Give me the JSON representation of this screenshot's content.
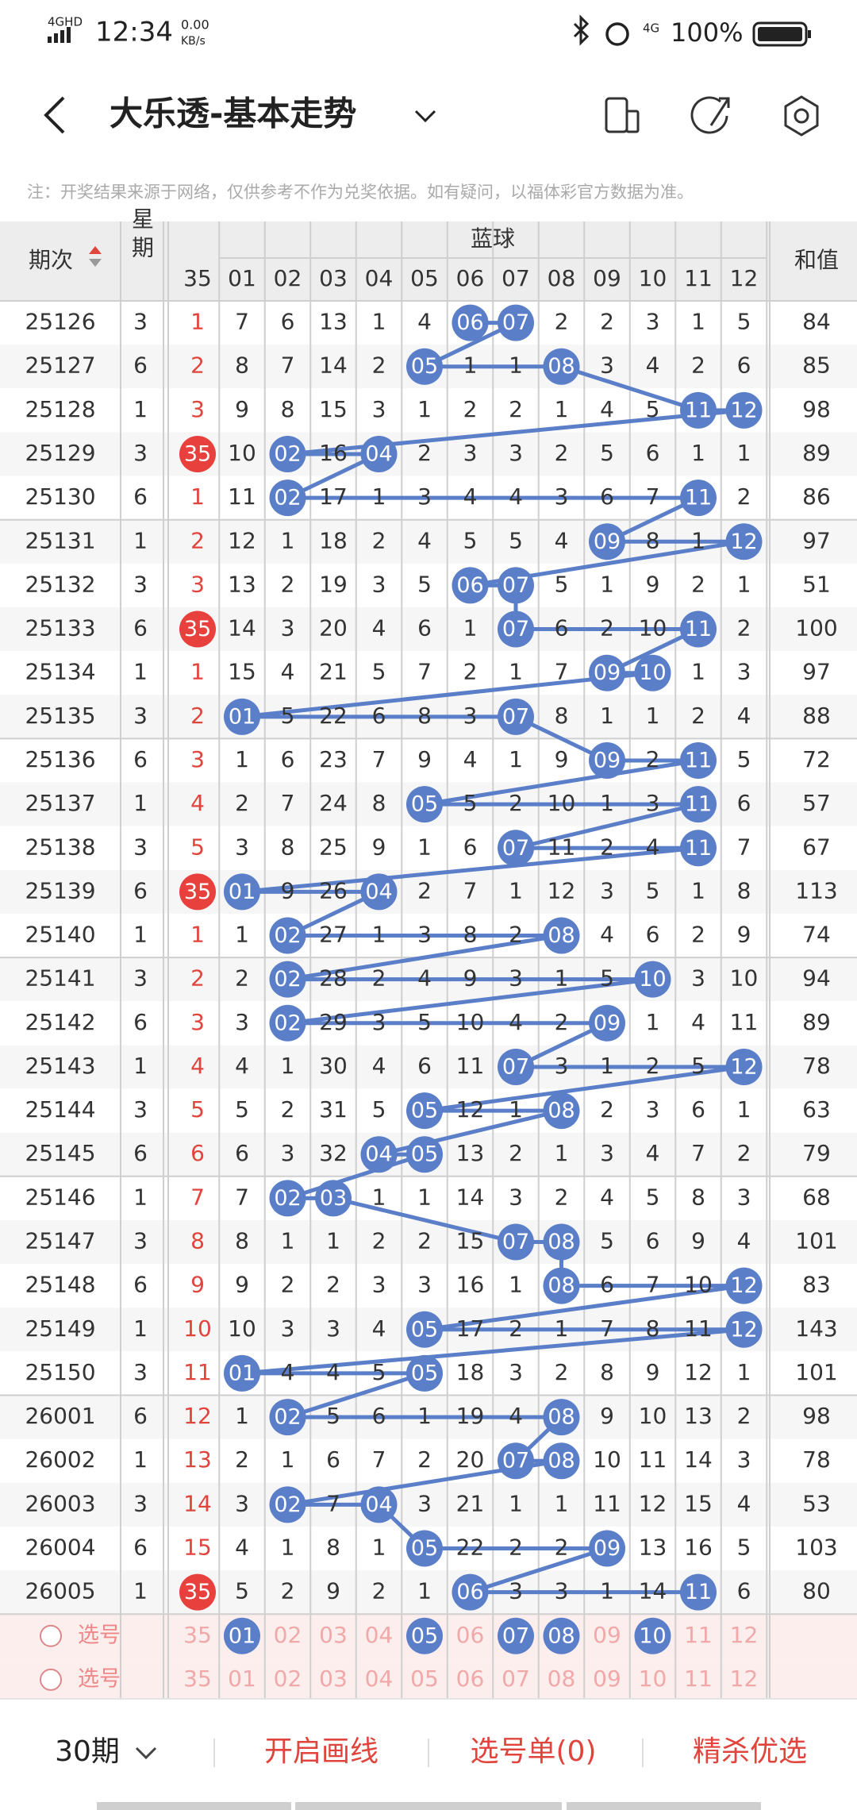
{
  "status_bar": {
    "network_type": "4GHD",
    "time": "12:34",
    "net_speed": "0.00",
    "net_unit": "KB/s",
    "mobile": "4G",
    "battery": "100%"
  },
  "header": {
    "title": "大乐透-基本走势"
  },
  "notice": "注：开奖结果来源于网络，仅供参考不作为兑奖依据。如有疑问，以福体彩官方数据为准。",
  "table": {
    "columns": {
      "period": "期次",
      "weekday": "星期",
      "blue_group": "蓝球",
      "front": "35",
      "blue": [
        "01",
        "02",
        "03",
        "04",
        "05",
        "06",
        "07",
        "08",
        "09",
        "10",
        "11",
        "12"
      ],
      "sum": "和值"
    },
    "rows": [
      {
        "period": "25126",
        "weekday": "3",
        "front": "1",
        "blue": [
          "7",
          "6",
          "13",
          "1",
          "4",
          "06",
          "07",
          "2",
          "2",
          "3",
          "1",
          "5"
        ],
        "balls": [
          5,
          6
        ],
        "sum": "84"
      },
      {
        "period": "25127",
        "weekday": "6",
        "front": "2",
        "blue": [
          "8",
          "7",
          "14",
          "2",
          "05",
          "1",
          "1",
          "08",
          "3",
          "4",
          "2",
          "6"
        ],
        "balls": [
          4,
          7
        ],
        "sum": "85"
      },
      {
        "period": "25128",
        "weekday": "1",
        "front": "3",
        "blue": [
          "9",
          "8",
          "15",
          "3",
          "1",
          "2",
          "2",
          "1",
          "4",
          "5",
          "11",
          "12"
        ],
        "balls": [
          10,
          11
        ],
        "sum": "98"
      },
      {
        "period": "25129",
        "weekday": "3",
        "front": "35",
        "blue": [
          "10",
          "02",
          "16",
          "04",
          "2",
          "3",
          "3",
          "2",
          "5",
          "6",
          "1",
          "1"
        ],
        "balls": [
          1,
          3
        ],
        "sum": "89"
      },
      {
        "period": "25130",
        "weekday": "6",
        "front": "1",
        "blue": [
          "11",
          "02",
          "17",
          "1",
          "3",
          "4",
          "4",
          "3",
          "6",
          "7",
          "11",
          "2"
        ],
        "balls": [
          1,
          10
        ],
        "sum": "86"
      },
      {
        "period": "25131",
        "weekday": "1",
        "front": "2",
        "blue": [
          "12",
          "1",
          "18",
          "2",
          "4",
          "5",
          "5",
          "4",
          "09",
          "8",
          "1",
          "12"
        ],
        "balls": [
          8,
          11
        ],
        "sum": "97"
      },
      {
        "period": "25132",
        "weekday": "3",
        "front": "3",
        "blue": [
          "13",
          "2",
          "19",
          "3",
          "5",
          "06",
          "07",
          "5",
          "1",
          "9",
          "2",
          "1"
        ],
        "balls": [
          5,
          6
        ],
        "sum": "51"
      },
      {
        "period": "25133",
        "weekday": "6",
        "front": "35",
        "blue": [
          "14",
          "3",
          "20",
          "4",
          "6",
          "1",
          "07",
          "6",
          "2",
          "10",
          "11",
          "2"
        ],
        "balls": [
          6,
          10
        ],
        "sum": "100"
      },
      {
        "period": "25134",
        "weekday": "1",
        "front": "1",
        "blue": [
          "15",
          "4",
          "21",
          "5",
          "7",
          "2",
          "1",
          "7",
          "09",
          "10",
          "1",
          "3"
        ],
        "balls": [
          8,
          9
        ],
        "sum": "97"
      },
      {
        "period": "25135",
        "weekday": "3",
        "front": "2",
        "blue": [
          "01",
          "5",
          "22",
          "6",
          "8",
          "3",
          "07",
          "8",
          "1",
          "1",
          "2",
          "4"
        ],
        "balls": [
          0,
          6
        ],
        "sum": "88"
      },
      {
        "period": "25136",
        "weekday": "6",
        "front": "3",
        "blue": [
          "1",
          "6",
          "23",
          "7",
          "9",
          "4",
          "1",
          "9",
          "09",
          "2",
          "11",
          "5"
        ],
        "balls": [
          8,
          10
        ],
        "sum": "72"
      },
      {
        "period": "25137",
        "weekday": "1",
        "front": "4",
        "blue": [
          "2",
          "7",
          "24",
          "8",
          "05",
          "5",
          "2",
          "10",
          "1",
          "3",
          "11",
          "6"
        ],
        "balls": [
          4,
          10
        ],
        "sum": "57"
      },
      {
        "period": "25138",
        "weekday": "3",
        "front": "5",
        "blue": [
          "3",
          "8",
          "25",
          "9",
          "1",
          "6",
          "07",
          "11",
          "2",
          "4",
          "11",
          "7"
        ],
        "balls": [
          6,
          10
        ],
        "sum": "67"
      },
      {
        "period": "25139",
        "weekday": "6",
        "front": "35",
        "blue": [
          "01",
          "9",
          "26",
          "04",
          "2",
          "7",
          "1",
          "12",
          "3",
          "5",
          "1",
          "8"
        ],
        "balls": [
          0,
          3
        ],
        "sum": "113"
      },
      {
        "period": "25140",
        "weekday": "1",
        "front": "1",
        "blue": [
          "1",
          "02",
          "27",
          "1",
          "3",
          "8",
          "2",
          "08",
          "4",
          "6",
          "2",
          "9"
        ],
        "balls": [
          1,
          7
        ],
        "sum": "74"
      },
      {
        "period": "25141",
        "weekday": "3",
        "front": "2",
        "blue": [
          "2",
          "02",
          "28",
          "2",
          "4",
          "9",
          "3",
          "1",
          "5",
          "10",
          "3",
          "10"
        ],
        "balls": [
          1,
          9
        ],
        "sum": "94"
      },
      {
        "period": "25142",
        "weekday": "6",
        "front": "3",
        "blue": [
          "3",
          "02",
          "29",
          "3",
          "5",
          "10",
          "4",
          "2",
          "09",
          "1",
          "4",
          "11"
        ],
        "balls": [
          1,
          8
        ],
        "sum": "89"
      },
      {
        "period": "25143",
        "weekday": "1",
        "front": "4",
        "blue": [
          "4",
          "1",
          "30",
          "4",
          "6",
          "11",
          "07",
          "3",
          "1",
          "2",
          "5",
          "12"
        ],
        "balls": [
          6,
          11
        ],
        "sum": "78"
      },
      {
        "period": "25144",
        "weekday": "3",
        "front": "5",
        "blue": [
          "5",
          "2",
          "31",
          "5",
          "05",
          "12",
          "1",
          "08",
          "2",
          "3",
          "6",
          "1"
        ],
        "balls": [
          4,
          7
        ],
        "sum": "63"
      },
      {
        "period": "25145",
        "weekday": "6",
        "front": "6",
        "blue": [
          "6",
          "3",
          "32",
          "04",
          "05",
          "13",
          "2",
          "1",
          "3",
          "4",
          "7",
          "2"
        ],
        "balls": [
          3,
          4
        ],
        "sum": "79"
      },
      {
        "period": "25146",
        "weekday": "1",
        "front": "7",
        "blue": [
          "7",
          "02",
          "03",
          "1",
          "1",
          "14",
          "3",
          "2",
          "4",
          "5",
          "8",
          "3"
        ],
        "balls": [
          1,
          2
        ],
        "sum": "68"
      },
      {
        "period": "25147",
        "weekday": "3",
        "front": "8",
        "blue": [
          "8",
          "1",
          "1",
          "2",
          "2",
          "15",
          "07",
          "08",
          "5",
          "6",
          "9",
          "4"
        ],
        "balls": [
          6,
          7
        ],
        "sum": "101"
      },
      {
        "period": "25148",
        "weekday": "6",
        "front": "9",
        "blue": [
          "9",
          "2",
          "2",
          "3",
          "3",
          "16",
          "1",
          "08",
          "6",
          "7",
          "10",
          "12"
        ],
        "balls": [
          7,
          11
        ],
        "sum": "83"
      },
      {
        "period": "25149",
        "weekday": "1",
        "front": "10",
        "blue": [
          "10",
          "3",
          "3",
          "4",
          "05",
          "17",
          "2",
          "1",
          "7",
          "8",
          "11",
          "12"
        ],
        "balls": [
          4,
          11
        ],
        "sum": "143"
      },
      {
        "period": "25150",
        "weekday": "3",
        "front": "11",
        "blue": [
          "01",
          "4",
          "4",
          "5",
          "05",
          "18",
          "3",
          "2",
          "8",
          "9",
          "12",
          "1"
        ],
        "balls": [
          0,
          4
        ],
        "sum": "101"
      },
      {
        "period": "26001",
        "weekday": "6",
        "front": "12",
        "blue": [
          "1",
          "02",
          "5",
          "6",
          "1",
          "19",
          "4",
          "08",
          "9",
          "10",
          "13",
          "2"
        ],
        "balls": [
          1,
          7
        ],
        "sum": "98"
      },
      {
        "period": "26002",
        "weekday": "1",
        "front": "13",
        "blue": [
          "2",
          "1",
          "6",
          "7",
          "2",
          "20",
          "07",
          "08",
          "10",
          "11",
          "14",
          "3"
        ],
        "balls": [
          6,
          7
        ],
        "sum": "78"
      },
      {
        "period": "26003",
        "weekday": "3",
        "front": "14",
        "blue": [
          "3",
          "02",
          "7",
          "04",
          "3",
          "21",
          "1",
          "1",
          "11",
          "12",
          "15",
          "4"
        ],
        "balls": [
          1,
          3
        ],
        "sum": "53"
      },
      {
        "period": "26004",
        "weekday": "6",
        "front": "15",
        "blue": [
          "4",
          "1",
          "8",
          "1",
          "05",
          "22",
          "2",
          "2",
          "09",
          "13",
          "16",
          "5"
        ],
        "balls": [
          4,
          8
        ],
        "sum": "103"
      },
      {
        "period": "26005",
        "weekday": "1",
        "front": "35",
        "blue": [
          "5",
          "2",
          "9",
          "2",
          "1",
          "06",
          "3",
          "3",
          "1",
          "14",
          "11",
          "6"
        ],
        "balls": [
          5,
          10
        ],
        "sum": "80"
      }
    ],
    "pick_rows": [
      {
        "label": "选号",
        "front": "35",
        "blue": [
          "01",
          "02",
          "03",
          "04",
          "05",
          "06",
          "07",
          "08",
          "09",
          "10",
          "11",
          "12"
        ],
        "balls": [
          0,
          4,
          6,
          7,
          9
        ]
      },
      {
        "label": "选号",
        "front": "35",
        "blue": [
          "01",
          "02",
          "03",
          "04",
          "05",
          "06",
          "07",
          "08",
          "09",
          "10",
          "11",
          "12"
        ],
        "balls": []
      }
    ]
  },
  "bottom_bar": {
    "periods": "30期",
    "draw_line": "开启画线",
    "pick_list": "选号单(0)",
    "filter": "精杀优选"
  }
}
